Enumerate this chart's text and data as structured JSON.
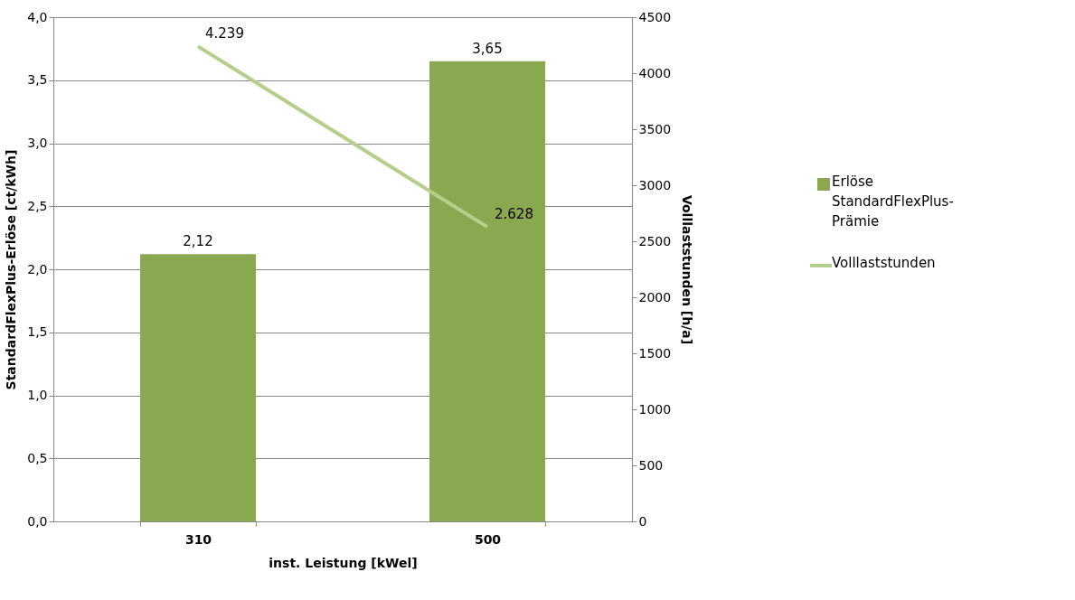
{
  "chart_data": {
    "type": "bar",
    "xlabel": "inst. Leistung [kWel]",
    "ylabel": "StandardFlexPlus-Erlöse  [ct/kWh]",
    "y2label": "Volllaststunden  [h/a]",
    "categories": [
      "310",
      "500"
    ],
    "series": [
      {
        "name": "Erlöse StandardFlexPlus-Prämie",
        "color": "#8aa84f",
        "values": [
          2.12,
          3.65
        ],
        "value_labels": [
          "2,12",
          "3,65"
        ]
      },
      {
        "name": "Volllaststunden",
        "type": "line",
        "axis": "y2",
        "color": "#b3cf8b",
        "values": [
          4239,
          2628
        ],
        "value_labels": [
          "4.239",
          "2.628"
        ],
        "marker": "none",
        "line_style": "solid"
      }
    ],
    "ylim": [
      0,
      4
    ],
    "yticks": [
      {
        "value": 0,
        "label": "0,0"
      },
      {
        "value": 0.5,
        "label": "0,5"
      },
      {
        "value": 1,
        "label": "1,0"
      },
      {
        "value": 1.5,
        "label": "1,5"
      },
      {
        "value": 2,
        "label": "2,0"
      },
      {
        "value": 2.5,
        "label": "2,5"
      },
      {
        "value": 3,
        "label": "3,0"
      },
      {
        "value": 3.5,
        "label": "3,5"
      },
      {
        "value": 4,
        "label": "4,0"
      }
    ],
    "y2lim": [
      0,
      4500
    ],
    "y2ticks": [
      0,
      500,
      1000,
      1500,
      2000,
      2500,
      3000,
      3500,
      4000,
      4500
    ],
    "grid": "y",
    "legend": "right"
  }
}
